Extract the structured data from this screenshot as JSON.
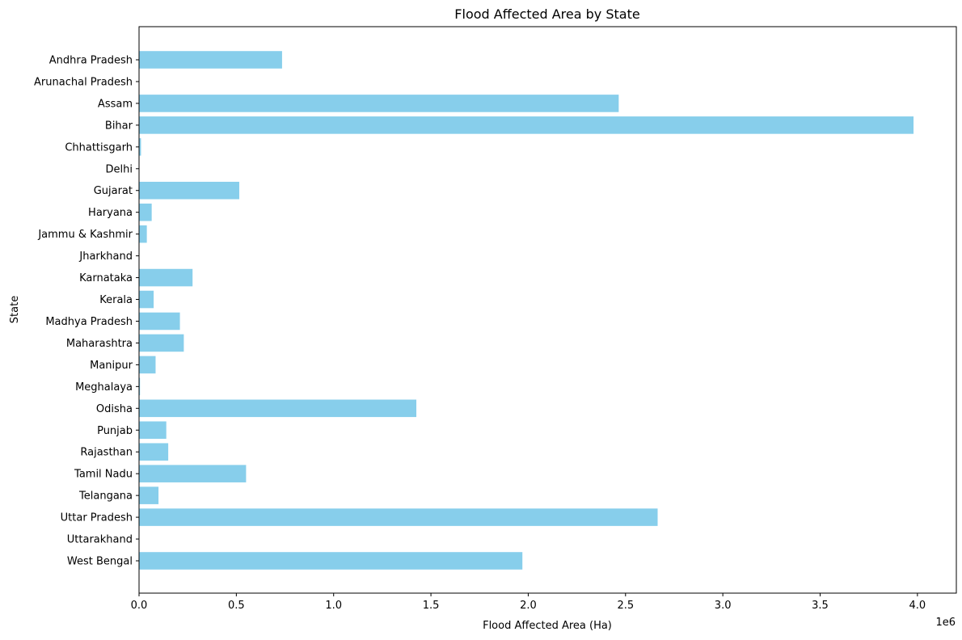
{
  "chart_data": {
    "type": "bar",
    "orientation": "horizontal",
    "title": "Flood Affected Area by State",
    "xlabel": "Flood Affected Area (Ha)",
    "ylabel": "State",
    "x_offset_label": "1e6",
    "xlim": [
      0,
      4200000
    ],
    "xticks": [
      0,
      500000,
      1000000,
      1500000,
      2000000,
      2500000,
      3000000,
      3500000,
      4000000
    ],
    "xtick_labels": [
      "0.0",
      "0.5",
      "1.0",
      "1.5",
      "2.0",
      "2.5",
      "3.0",
      "3.5",
      "4.0"
    ],
    "grid": false,
    "bar_color": "#87ceeb",
    "categories": [
      "Andhra Pradesh",
      "Arunachal Pradesh",
      "Assam",
      "Bihar",
      "Chhattisgarh",
      "Delhi",
      "Gujarat",
      "Haryana",
      "Jammu & Kashmir",
      "Jharkhand",
      "Karnataka",
      "Kerala",
      "Madhya Pradesh",
      "Maharashtra",
      "Manipur",
      "Meghalaya",
      "Odisha",
      "Punjab",
      "Rajasthan",
      "Tamil Nadu",
      "Telangana",
      "Uttar Pradesh",
      "Uttarakhand",
      "West Bengal"
    ],
    "values": [
      735000,
      0,
      2465000,
      3980000,
      10000,
      0,
      515000,
      65000,
      40000,
      0,
      275000,
      75000,
      210000,
      230000,
      85000,
      5000,
      1425000,
      140000,
      150000,
      550000,
      100000,
      2665000,
      0,
      1970000
    ]
  }
}
